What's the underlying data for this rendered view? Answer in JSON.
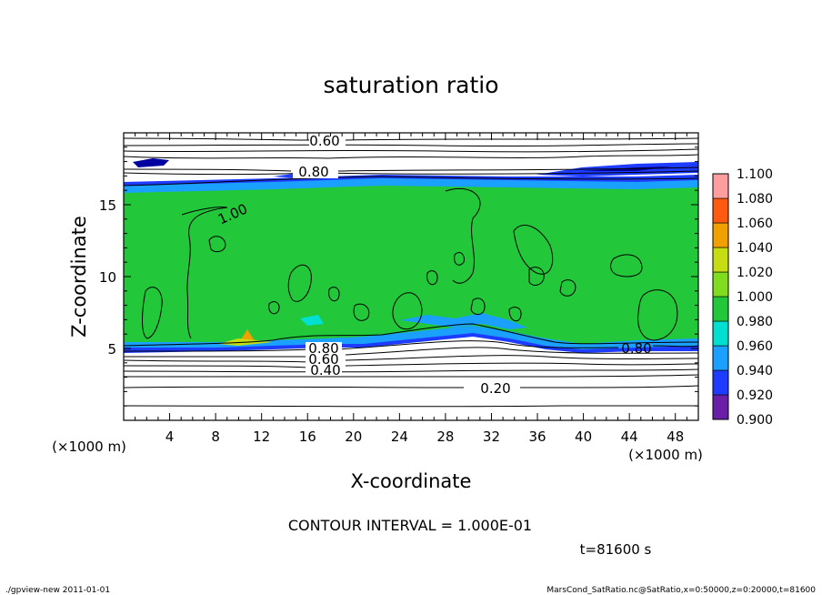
{
  "chart_data": {
    "type": "heatmap",
    "title": "saturation ratio",
    "xlabel": "X-coordinate",
    "ylabel": "Z-coordinate",
    "x_unit": "(×1000 m)",
    "z_unit": "(×1000 m)",
    "xlim": [
      0,
      50
    ],
    "zlim": [
      0,
      20
    ],
    "x_ticks": [
      "4",
      "8",
      "12",
      "16",
      "20",
      "24",
      "28",
      "32",
      "36",
      "40",
      "44",
      "48"
    ],
    "z_ticks": [
      "5",
      "10",
      "15"
    ],
    "colorbar": {
      "levels": [
        "0.900",
        "0.920",
        "0.940",
        "0.960",
        "0.980",
        "1.000",
        "1.020",
        "1.040",
        "1.060",
        "1.080",
        "1.100"
      ],
      "colors": [
        "#6a1fa8",
        "#0000a0",
        "#1e3cff",
        "#1aa0ff",
        "#00e0d0",
        "#22c83a",
        "#7fdc1e",
        "#c8dc14",
        "#f0a000",
        "#ff5a10",
        "#ff9e9e"
      ],
      "values": [
        0.9,
        0.92,
        0.94,
        0.96,
        0.98,
        1.0,
        1.02,
        1.04,
        1.06,
        1.08,
        1.1
      ]
    },
    "contour_labels": [
      "0.60",
      "0.80",
      "1.00",
      "0.80",
      "0.60",
      "0.40",
      "0.20",
      "0.80"
    ],
    "contour_interval_text": "CONTOUR INTERVAL = 1.000E-01",
    "time_text": "t=81600 s"
  },
  "footer": {
    "left": "./gpview-new  2011-01-01",
    "right": "MarsCond_SatRatio.nc@SatRatio,x=0:50000,z=0:20000,t=81600"
  }
}
